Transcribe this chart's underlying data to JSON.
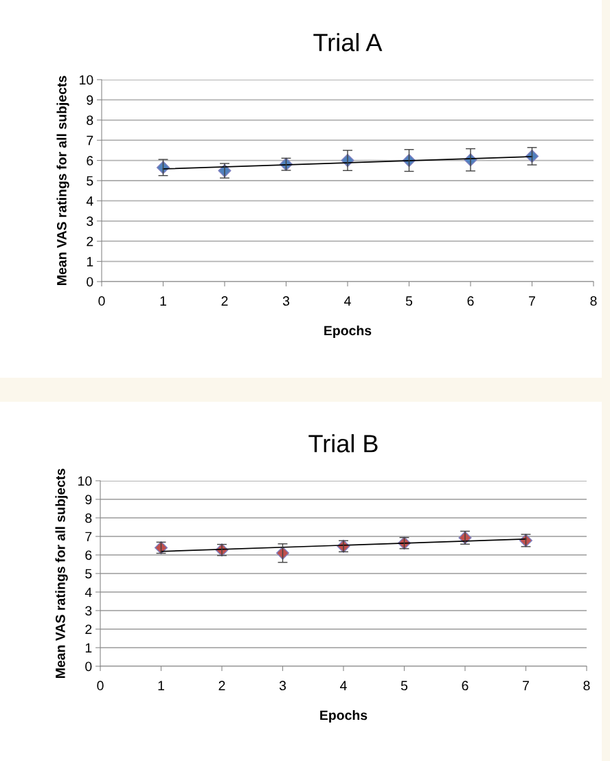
{
  "chart_data": [
    {
      "type": "scatter",
      "title": "Trial A",
      "xlabel": "Epochs",
      "ylabel": "Mean VAS ratings for all subjects",
      "xlim": [
        0,
        8
      ],
      "xticks": [
        0,
        1,
        2,
        3,
        4,
        5,
        6,
        7,
        8
      ],
      "ylim": [
        0,
        10
      ],
      "yticks": [
        0,
        1,
        2,
        3,
        4,
        5,
        6,
        7,
        8,
        9,
        10
      ],
      "grid": "y",
      "legend": false,
      "marker": "diamond",
      "series": [
        {
          "color": "#4f81bd",
          "x": [
            1,
            2,
            3,
            4,
            5,
            6,
            7
          ],
          "values": [
            5.65,
            5.49,
            5.81,
            6.0,
            6.0,
            6.03,
            6.21
          ],
          "errors": [
            0.4,
            0.36,
            0.3,
            0.5,
            0.54,
            0.55,
            0.43
          ]
        },
        {
          "type": "line",
          "color": "#000000",
          "marker": "none",
          "line_style": "solid",
          "x": [
            1,
            7
          ],
          "values": [
            5.58,
            6.19
          ]
        }
      ]
    },
    {
      "type": "scatter",
      "title": "Trial B",
      "xlabel": "Epochs",
      "ylabel": "Mean VAS ratings for all subjects",
      "xlim": [
        0,
        8
      ],
      "xticks": [
        0,
        1,
        2,
        3,
        4,
        5,
        6,
        7,
        8
      ],
      "ylim": [
        0,
        10
      ],
      "yticks": [
        0,
        1,
        2,
        3,
        4,
        5,
        6,
        7,
        8,
        9,
        10
      ],
      "grid": "y",
      "legend": false,
      "marker": "diamond",
      "series": [
        {
          "color": "#c0504d",
          "x": [
            1,
            2,
            3,
            4,
            5,
            6,
            7
          ],
          "values": [
            6.39,
            6.27,
            6.1,
            6.47,
            6.64,
            6.93,
            6.78
          ],
          "errors": [
            0.3,
            0.3,
            0.5,
            0.3,
            0.3,
            0.35,
            0.33
          ]
        },
        {
          "type": "line",
          "color": "#000000",
          "marker": "none",
          "line_style": "solid",
          "x": [
            1,
            7
          ],
          "values": [
            6.19,
            6.86
          ]
        }
      ]
    }
  ]
}
